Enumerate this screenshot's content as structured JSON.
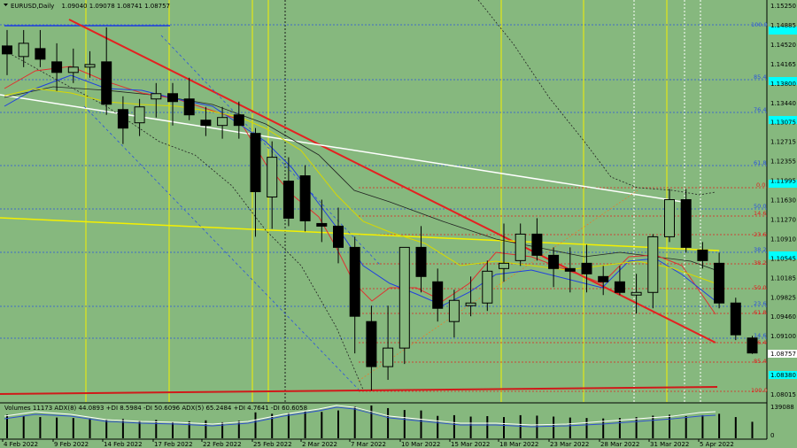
{
  "header": {
    "symbol": "EURUSD,Daily",
    "ohlc": "1.09040 1.09078 1.08741 1.08757"
  },
  "indicator_header": "Volumes 11173  ADX(8) 44.0893 +DI 8.5984 -DI 50.6096  ADX(5) 65.2484 +DI 4.7641 -DI 60.6058",
  "price_axis": {
    "labels": [
      "1.15250",
      "1.14885",
      "1.14520",
      "1.14165",
      "1.13800",
      "1.13440",
      "1.13075",
      "1.12715",
      "1.12355",
      "1.11995",
      "1.11630",
      "1.11270",
      "1.10910",
      "1.10545",
      "1.10185",
      "1.09825",
      "1.09460",
      "1.09100",
      "1.08740",
      "1.08380",
      "1.08015"
    ],
    "current_price": "1.08757",
    "current_color": "#ffffff"
  },
  "volume_axis": {
    "labels": [
      "139088",
      "0"
    ]
  },
  "date_axis": {
    "labels": [
      "4 Feb 2022",
      "9 Feb 2022",
      "14 Feb 2022",
      "17 Feb 2022",
      "22 Feb 2022",
      "25 Feb 2022",
      "2 Mar 2022",
      "7 Mar 2022",
      "10 Mar 2022",
      "15 Mar 2022",
      "18 Mar 2022",
      "23 Mar 2022",
      "28 Mar 2022",
      "31 Mar 2022",
      "5 Apr 2022"
    ]
  },
  "fib_upper": [
    {
      "label": "100.0",
      "color": "#2a52e0"
    },
    {
      "label": "85.4",
      "color": "#2a52e0"
    },
    {
      "label": "76.4",
      "color": "#2a52e0"
    },
    {
      "label": "61.8",
      "color": "#2a52e0"
    },
    {
      "label": "50.0",
      "color": "#2a52e0"
    },
    {
      "label": "38.2",
      "color": "#2a52e0"
    },
    {
      "label": "23.6",
      "color": "#2a52e0"
    },
    {
      "label": "14.6",
      "color": "#2a52e0"
    }
  ],
  "fib_lower": [
    {
      "label": "0.0",
      "color": "#e02020"
    },
    {
      "label": "14.6",
      "color": "#e02020"
    },
    {
      "label": "23.6",
      "color": "#e02020"
    },
    {
      "label": "38.2",
      "color": "#e02020"
    },
    {
      "label": "50.0",
      "color": "#e02020"
    },
    {
      "label": "61.8",
      "color": "#e02020"
    },
    {
      "label": "76.4",
      "color": "#e02020"
    },
    {
      "label": "85.4",
      "color": "#e02020"
    },
    {
      "label": "100.0",
      "color": "#e02020"
    }
  ],
  "chart_data": {
    "type": "candlestick",
    "symbol": "EURUSD",
    "timeframe": "Daily",
    "ylim": [
      1.079,
      1.1535
    ],
    "candles": [
      {
        "o": 1.1455,
        "h": 1.1485,
        "l": 1.14,
        "c": 1.144
      },
      {
        "o": 1.1435,
        "h": 1.1485,
        "l": 1.1415,
        "c": 1.146
      },
      {
        "o": 1.145,
        "h": 1.1485,
        "l": 1.1415,
        "c": 1.143
      },
      {
        "o": 1.1425,
        "h": 1.146,
        "l": 1.137,
        "c": 1.1405
      },
      {
        "o": 1.1405,
        "h": 1.145,
        "l": 1.1385,
        "c": 1.1415
      },
      {
        "o": 1.1415,
        "h": 1.1445,
        "l": 1.1395,
        "c": 1.142
      },
      {
        "o": 1.1425,
        "h": 1.149,
        "l": 1.1325,
        "c": 1.1345
      },
      {
        "o": 1.1335,
        "h": 1.136,
        "l": 1.127,
        "c": 1.13
      },
      {
        "o": 1.131,
        "h": 1.1355,
        "l": 1.1285,
        "c": 1.134
      },
      {
        "o": 1.1355,
        "h": 1.1385,
        "l": 1.132,
        "c": 1.1365
      },
      {
        "o": 1.1365,
        "h": 1.1385,
        "l": 1.1305,
        "c": 1.135
      },
      {
        "o": 1.1355,
        "h": 1.1395,
        "l": 1.1315,
        "c": 1.1325
      },
      {
        "o": 1.1315,
        "h": 1.134,
        "l": 1.1285,
        "c": 1.1305
      },
      {
        "o": 1.1305,
        "h": 1.134,
        "l": 1.128,
        "c": 1.132
      },
      {
        "o": 1.1325,
        "h": 1.135,
        "l": 1.128,
        "c": 1.1305
      },
      {
        "o": 1.129,
        "h": 1.13,
        "l": 1.1095,
        "c": 1.118
      },
      {
        "o": 1.117,
        "h": 1.1275,
        "l": 1.111,
        "c": 1.1245
      },
      {
        "o": 1.12,
        "h": 1.1245,
        "l": 1.1115,
        "c": 1.113
      },
      {
        "o": 1.121,
        "h": 1.123,
        "l": 1.1105,
        "c": 1.1125
      },
      {
        "o": 1.112,
        "h": 1.1165,
        "l": 1.1085,
        "c": 1.1115
      },
      {
        "o": 1.1115,
        "h": 1.115,
        "l": 1.1045,
        "c": 1.1075
      },
      {
        "o": 1.1075,
        "h": 1.1095,
        "l": 1.0875,
        "c": 1.0945
      },
      {
        "o": 1.0935,
        "h": 1.0965,
        "l": 1.0805,
        "c": 1.085
      },
      {
        "o": 1.085,
        "h": 1.0965,
        "l": 1.0825,
        "c": 1.0885
      },
      {
        "o": 1.0885,
        "h": 1.107,
        "l": 1.0855,
        "c": 1.1075
      },
      {
        "o": 1.1075,
        "h": 1.1115,
        "l": 1.099,
        "c": 1.102
      },
      {
        "o": 1.101,
        "h": 1.1035,
        "l": 1.0935,
        "c": 1.096
      },
      {
        "o": 1.0935,
        "h": 1.0995,
        "l": 1.0905,
        "c": 1.0975
      },
      {
        "o": 1.0965,
        "h": 1.102,
        "l": 1.0945,
        "c": 1.097
      },
      {
        "o": 1.097,
        "h": 1.105,
        "l": 1.0955,
        "c": 1.103
      },
      {
        "o": 1.1035,
        "h": 1.112,
        "l": 1.101,
        "c": 1.1045
      },
      {
        "o": 1.105,
        "h": 1.112,
        "l": 1.104,
        "c": 1.11
      },
      {
        "o": 1.11,
        "h": 1.113,
        "l": 1.105,
        "c": 1.106
      },
      {
        "o": 1.106,
        "h": 1.1075,
        "l": 1.1,
        "c": 1.1035
      },
      {
        "o": 1.1035,
        "h": 1.1075,
        "l": 1.099,
        "c": 1.103
      },
      {
        "o": 1.1045,
        "h": 1.108,
        "l": 1.099,
        "c": 1.1025
      },
      {
        "o": 1.102,
        "h": 1.104,
        "l": 1.0985,
        "c": 1.101
      },
      {
        "o": 1.101,
        "h": 1.104,
        "l": 1.0985,
        "c": 1.099
      },
      {
        "o": 1.0985,
        "h": 1.1025,
        "l": 1.095,
        "c": 1.099
      },
      {
        "o": 1.099,
        "h": 1.11,
        "l": 1.096,
        "c": 1.1095
      },
      {
        "o": 1.1095,
        "h": 1.1185,
        "l": 1.1085,
        "c": 1.1165
      },
      {
        "o": 1.1165,
        "h": 1.1185,
        "l": 1.1065,
        "c": 1.1075
      },
      {
        "o": 1.107,
        "h": 1.1085,
        "l": 1.1035,
        "c": 1.105
      },
      {
        "o": 1.1045,
        "h": 1.1065,
        "l": 1.096,
        "c": 1.097
      },
      {
        "o": 1.097,
        "h": 1.098,
        "l": 1.09,
        "c": 1.091
      },
      {
        "o": 1.0904,
        "h": 1.0908,
        "l": 1.0874,
        "c": 1.08757
      }
    ],
    "volumes": [
      100000,
      95000,
      90000,
      88000,
      86000,
      84000,
      80000,
      82000,
      75000,
      78000,
      70000,
      72000,
      76000,
      68000,
      74000,
      110000,
      104000,
      108000,
      115000,
      112000,
      118000,
      135000,
      139088,
      128000,
      120000,
      118000,
      95000,
      98000,
      92000,
      94000,
      90000,
      98000,
      96000,
      92000,
      88000,
      86000,
      84000,
      86000,
      90000,
      96000,
      100000,
      94000,
      98000,
      104000,
      90000,
      70000
    ]
  }
}
